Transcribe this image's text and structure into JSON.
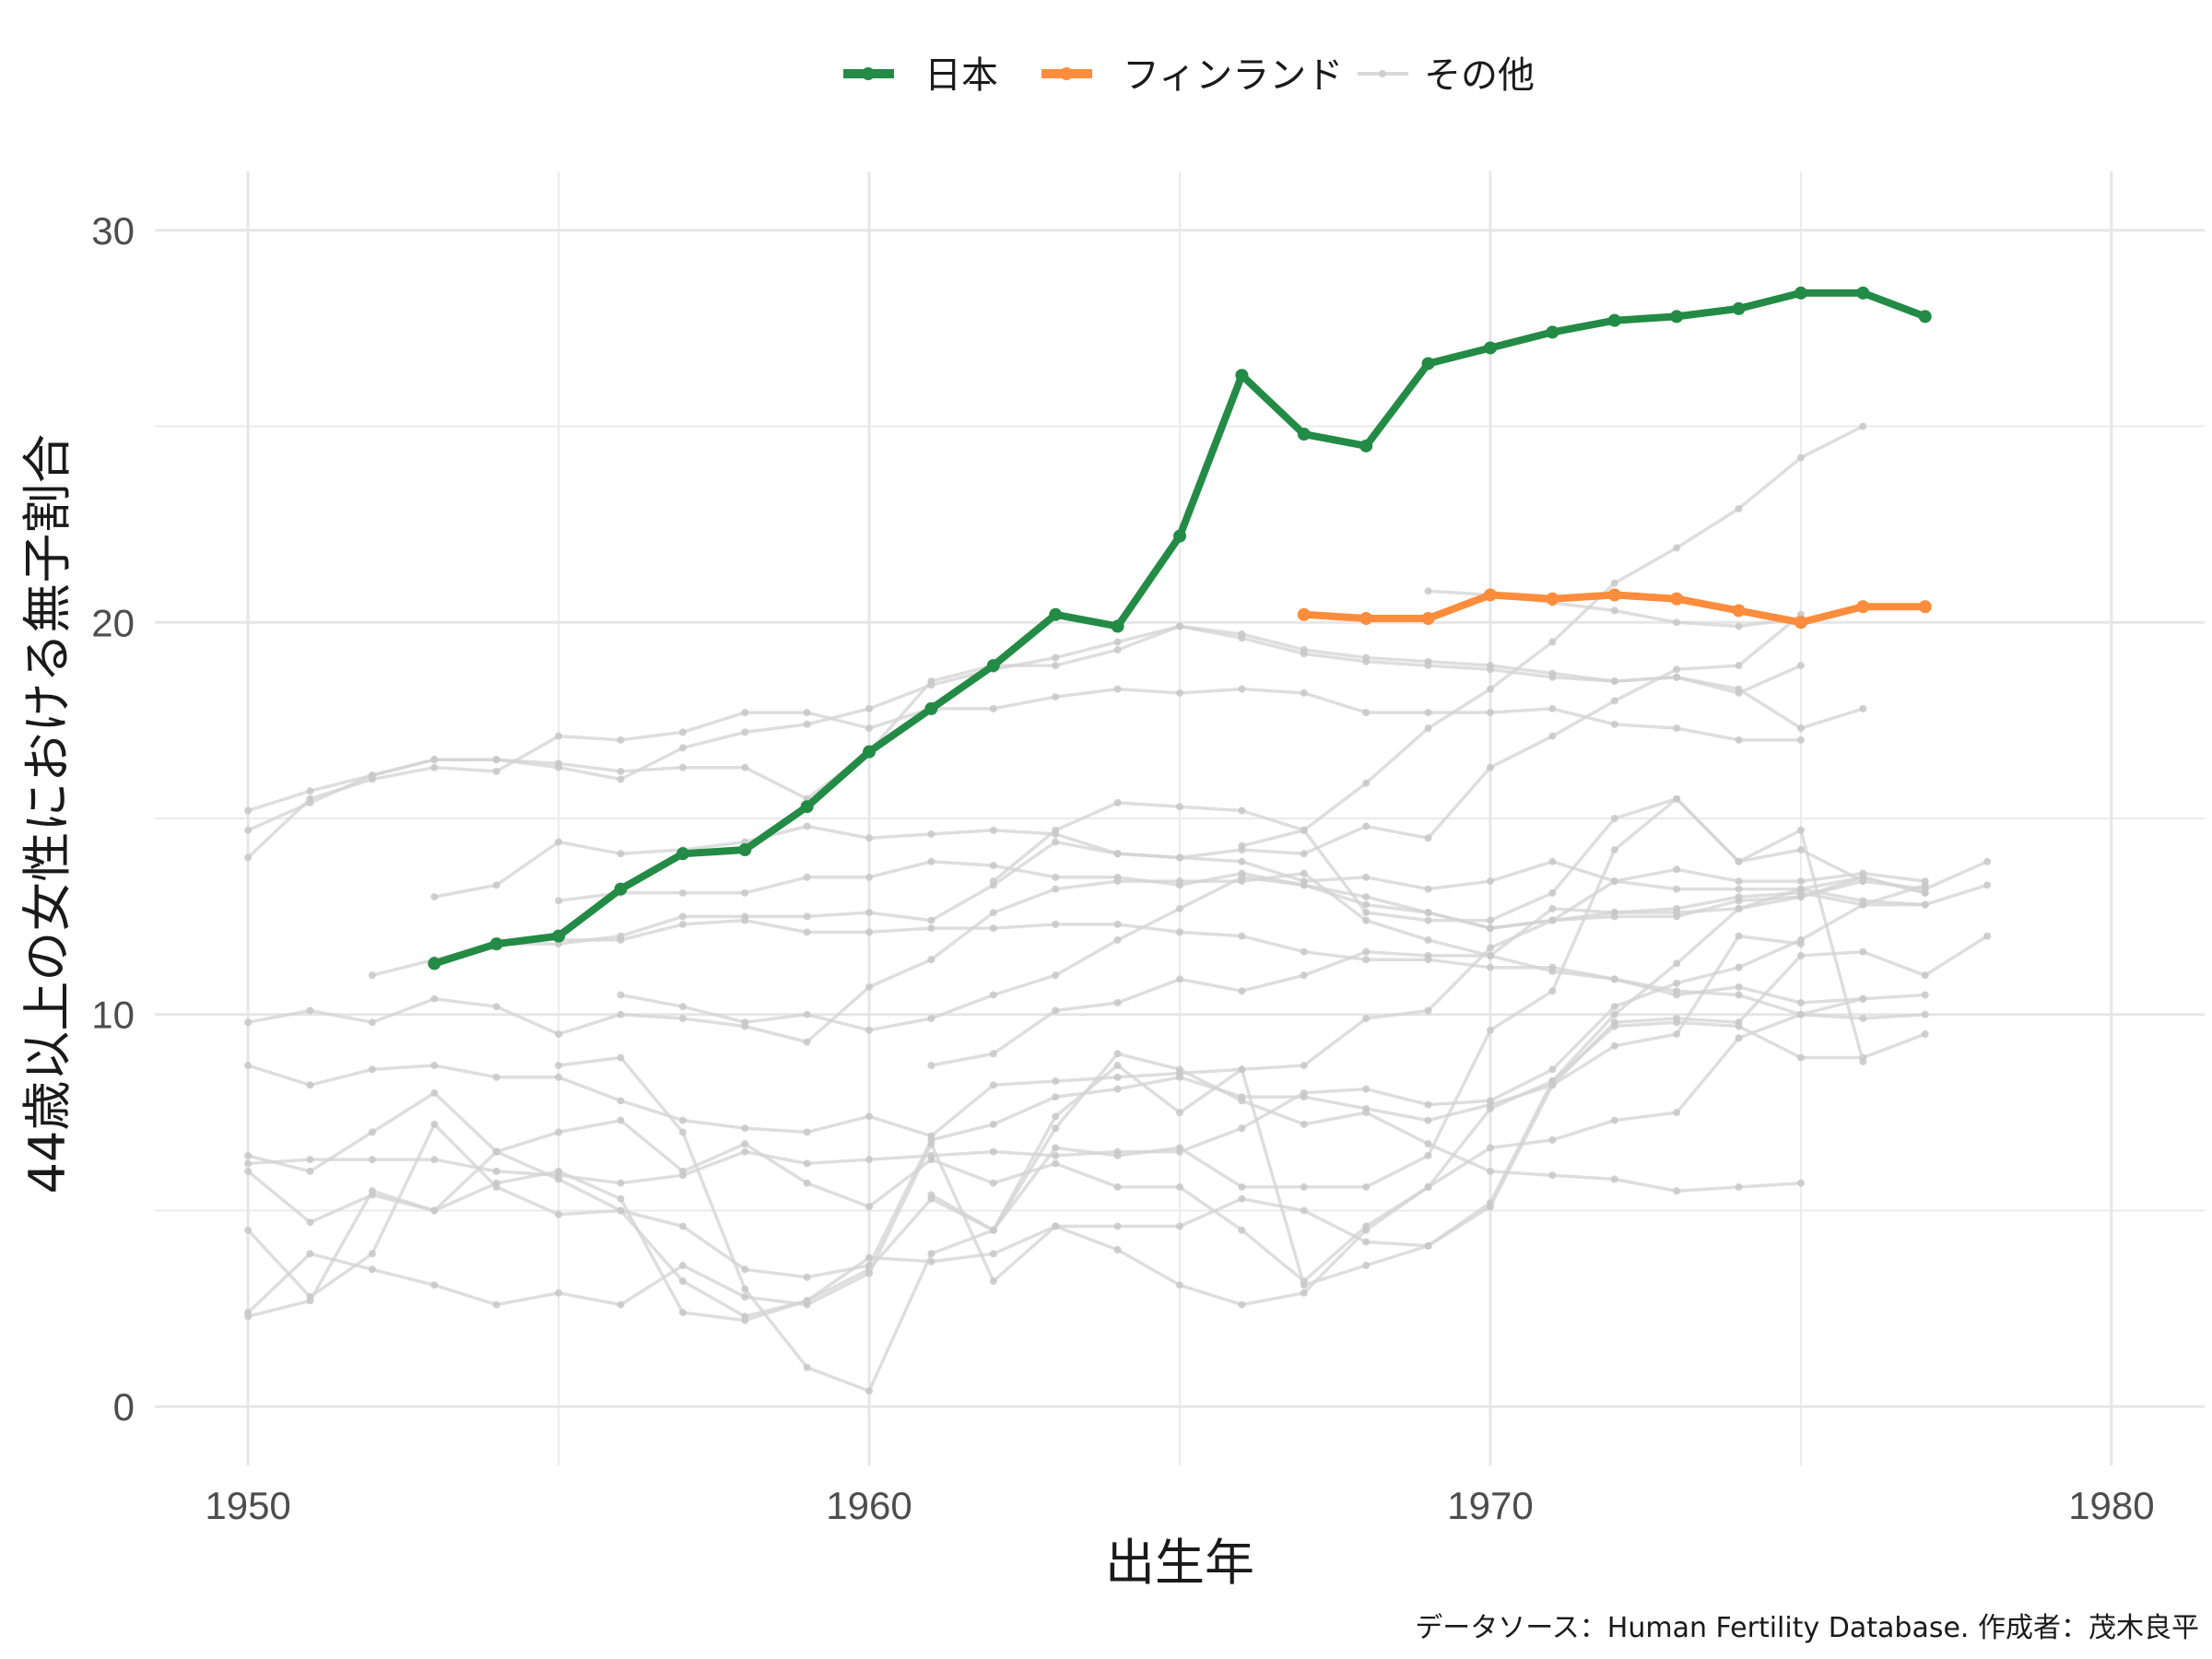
{
  "chart_data": {
    "type": "line",
    "xlabel": "出生年",
    "ylabel": "44歳以上の女性における無子割合",
    "caption": "データソース：Human Fertility Database. 作成者：茂木良平",
    "xlim": [
      1948.5,
      1981.5
    ],
    "ylim": [
      -1.5,
      31.5
    ],
    "x_ticks": [
      1950,
      1960,
      1970,
      1980
    ],
    "y_ticks": [
      0,
      10,
      20,
      30
    ],
    "grid": true,
    "legend_position": "top",
    "legend": [
      {
        "label": "日本",
        "color": "#238b45"
      },
      {
        "label": "フィンランド",
        "color": "#fd8d3c"
      },
      {
        "label": "その他",
        "color": "#d9d9d9"
      }
    ],
    "highlight_series": [
      {
        "name": "日本",
        "color": "#238b45",
        "x": [
          1953,
          1954,
          1955,
          1956,
          1957,
          1958,
          1959,
          1960,
          1961,
          1962,
          1963,
          1964,
          1965,
          1966,
          1967,
          1968,
          1969,
          1970,
          1971,
          1972,
          1973,
          1974,
          1975,
          1976,
          1977
        ],
        "y": [
          11.3,
          11.8,
          12.0,
          13.2,
          14.1,
          14.2,
          15.3,
          16.7,
          17.8,
          18.9,
          20.2,
          19.9,
          22.2,
          26.3,
          24.8,
          24.5,
          26.6,
          27.0,
          27.4,
          27.7,
          27.8,
          28.0,
          28.4,
          28.4,
          27.8
        ]
      },
      {
        "name": "フィンランド",
        "color": "#fd8d3c",
        "x": [
          1967,
          1968,
          1969,
          1970,
          1971,
          1972,
          1973,
          1974,
          1975,
          1976,
          1977
        ],
        "y": [
          20.2,
          20.1,
          20.1,
          20.7,
          20.6,
          20.7,
          20.6,
          20.3,
          20.0,
          20.4,
          20.4
        ]
      }
    ],
    "other_series": [
      {
        "x": [
          1950,
          1951,
          1952,
          1953,
          1954,
          1955,
          1956,
          1957,
          1958,
          1959,
          1960,
          1961,
          1962,
          1963,
          1964,
          1965,
          1966,
          1967,
          1968,
          1969,
          1970,
          1971,
          1972,
          1973,
          1974,
          1975
        ],
        "y": [
          15.2,
          15.7,
          16.1,
          16.5,
          16.5,
          16.4,
          16.2,
          16.3,
          16.3,
          15.5,
          16.7,
          18.5,
          18.9,
          18.9,
          19.3,
          19.9,
          19.7,
          19.3,
          19.1,
          19.0,
          18.9,
          18.7,
          18.5,
          18.6,
          18.2,
          18.9
        ]
      },
      {
        "x": [
          1950,
          1951,
          1952,
          1953,
          1954,
          1955,
          1956,
          1957,
          1958,
          1959,
          1960,
          1961,
          1962,
          1963,
          1964,
          1965,
          1966,
          1967,
          1968,
          1969,
          1970,
          1971,
          1972,
          1973,
          1974,
          1975
        ],
        "y": [
          14.0,
          15.5,
          16.0,
          16.3,
          16.2,
          17.1,
          17.0,
          17.2,
          17.7,
          17.7,
          17.3,
          17.8,
          17.8,
          18.1,
          18.3,
          18.2,
          18.3,
          18.2,
          17.7,
          17.7,
          17.7,
          17.8,
          17.4,
          17.3,
          17.0,
          17.0
        ]
      },
      {
        "x": [
          1969,
          1970,
          1971,
          1972,
          1973,
          1974,
          1975
        ],
        "y": [
          20.8,
          20.7,
          20.5,
          20.3,
          20.0,
          19.9,
          20.1
        ]
      },
      {
        "x": [
          1950,
          1951,
          1952,
          1953,
          1954,
          1955,
          1956,
          1957,
          1958,
          1959,
          1960,
          1961,
          1962,
          1963,
          1964,
          1965,
          1966,
          1967,
          1968,
          1969,
          1970,
          1971,
          1972,
          1973,
          1974,
          1975,
          1976
        ],
        "y": [
          14.7,
          15.4,
          16.1,
          16.5,
          16.5,
          16.3,
          16.0,
          16.8,
          17.2,
          17.4,
          17.8,
          18.4,
          18.8,
          19.1,
          19.5,
          19.9,
          19.6,
          19.2,
          19.0,
          18.9,
          18.8,
          18.6,
          18.5,
          18.6,
          18.3,
          17.3,
          17.8
        ]
      },
      {
        "x": [
          1966,
          1967,
          1968,
          1969,
          1970,
          1971,
          1972,
          1973,
          1974,
          1975,
          1976
        ],
        "y": [
          14.3,
          14.7,
          15.9,
          17.3,
          18.3,
          19.5,
          21.0,
          21.9,
          22.9,
          24.2,
          25.0
        ]
      },
      {
        "x": [
          1953,
          1954,
          1955,
          1956,
          1957,
          1958,
          1959,
          1960,
          1961,
          1962,
          1963,
          1964,
          1965,
          1966,
          1967,
          1968,
          1969,
          1970,
          1971,
          1972,
          1973,
          1974,
          1975
        ],
        "y": [
          13.0,
          13.3,
          14.4,
          14.1,
          14.2,
          14.4,
          14.8,
          14.5,
          14.6,
          14.7,
          14.6,
          14.1,
          14.0,
          14.2,
          14.1,
          14.8,
          14.5,
          16.3,
          17.1,
          18.0,
          18.8,
          18.9,
          20.2
        ]
      },
      {
        "x": [
          1955,
          1956,
          1957,
          1958,
          1959,
          1960,
          1961,
          1962,
          1963,
          1964,
          1965,
          1966,
          1967,
          1968,
          1969,
          1970,
          1971,
          1972,
          1973,
          1974,
          1975,
          1976,
          1977
        ],
        "y": [
          12.9,
          13.1,
          13.1,
          13.1,
          13.5,
          13.5,
          13.9,
          13.8,
          13.5,
          13.5,
          13.3,
          13.6,
          13.3,
          13.0,
          12.6,
          12.2,
          12.4,
          13.4,
          13.2,
          13.2,
          13.2,
          12.9,
          12.8
        ]
      },
      {
        "x": [
          1955,
          1956,
          1957,
          1958,
          1959,
          1960,
          1961,
          1962,
          1963,
          1964,
          1965,
          1966,
          1967,
          1968,
          1969,
          1970,
          1971,
          1972,
          1973,
          1974,
          1975,
          1976,
          1977
        ],
        "y": [
          11.9,
          11.9,
          12.3,
          12.4,
          12.1,
          12.1,
          12.2,
          12.2,
          12.3,
          12.3,
          12.1,
          12.0,
          11.6,
          11.4,
          11.4,
          11.2,
          11.2,
          10.9,
          10.6,
          10.5,
          10.0,
          9.9,
          10.0
        ]
      },
      {
        "x": [
          1952,
          1953,
          1954,
          1955,
          1956,
          1957,
          1958,
          1959,
          1960,
          1961,
          1962,
          1963,
          1964,
          1965,
          1966,
          1967,
          1968,
          1969,
          1970,
          1971,
          1972,
          1973,
          1974,
          1975,
          1976,
          1977
        ],
        "y": [
          11.0,
          11.4,
          11.8,
          11.8,
          12.0,
          12.5,
          12.5,
          12.5,
          12.6,
          12.4,
          13.3,
          14.4,
          14.1,
          14.0,
          13.9,
          13.4,
          13.5,
          13.2,
          13.4,
          13.9,
          13.4,
          13.7,
          13.4,
          13.4,
          13.6,
          13.4
        ]
      },
      {
        "x": [
          1950,
          1951,
          1952,
          1953,
          1954,
          1955,
          1956,
          1957,
          1958,
          1959,
          1960,
          1961,
          1962,
          1963,
          1964,
          1965,
          1966,
          1967,
          1968,
          1969,
          1970,
          1971,
          1972,
          1973,
          1974,
          1975,
          1976,
          1977,
          1978
        ],
        "y": [
          9.8,
          10.1,
          9.8,
          10.4,
          10.2,
          9.5,
          10.0,
          9.9,
          9.7,
          9.3,
          10.7,
          11.4,
          12.6,
          13.2,
          13.4,
          13.4,
          13.4,
          13.6,
          12.4,
          11.9,
          11.5,
          12.7,
          12.6,
          12.7,
          13.0,
          13.1,
          12.8,
          12.8,
          13.3
        ]
      },
      {
        "x": [
          1956,
          1957,
          1958,
          1959,
          1960,
          1961,
          1962,
          1963,
          1964,
          1965,
          1966,
          1967,
          1968,
          1969,
          1970,
          1971,
          1972,
          1973,
          1974,
          1975,
          1976,
          1977,
          1978
        ],
        "y": [
          10.5,
          10.2,
          9.8,
          10.0,
          9.6,
          9.9,
          10.5,
          11.0,
          11.9,
          12.7,
          13.5,
          13.3,
          12.8,
          12.6,
          12.2,
          12.4,
          12.6,
          12.6,
          12.7,
          13.0,
          13.4,
          13.2,
          13.9
        ]
      },
      {
        "x": [
          1950,
          1951,
          1952,
          1953,
          1954,
          1955,
          1956,
          1957,
          1958,
          1959,
          1960,
          1961,
          1962,
          1963,
          1964,
          1965,
          1966,
          1967,
          1968,
          1969,
          1970,
          1971,
          1972,
          1973,
          1974,
          1975,
          1976,
          1977
        ],
        "y": [
          8.7,
          8.2,
          8.6,
          8.7,
          8.4,
          8.4,
          7.8,
          7.3,
          7.1,
          7.0,
          7.4,
          6.9,
          8.2,
          8.3,
          8.4,
          8.5,
          8.6,
          8.7,
          9.9,
          10.1,
          11.7,
          12.4,
          12.5,
          12.5,
          12.9,
          13.0,
          13.5,
          13.1
        ]
      },
      {
        "x": [
          1961,
          1962,
          1963,
          1964,
          1965,
          1966,
          1967,
          1968,
          1969,
          1970,
          1971,
          1972,
          1973,
          1974,
          1975,
          1976,
          1977
        ],
        "y": [
          8.7,
          9.0,
          10.1,
          10.3,
          10.9,
          10.6,
          11.0,
          11.6,
          11.5,
          11.5,
          11.1,
          10.9,
          10.5,
          10.7,
          10.3,
          10.4,
          10.5
        ]
      },
      {
        "x": [
          1950,
          1951,
          1952,
          1953,
          1954,
          1955,
          1956,
          1957,
          1958,
          1959,
          1960,
          1961,
          1962,
          1963,
          1964,
          1965,
          1966,
          1967,
          1968,
          1969,
          1970,
          1971,
          1972,
          1973,
          1974,
          1975,
          1976,
          1977,
          1978
        ],
        "y": [
          6.4,
          6.0,
          7.0,
          8.0,
          6.5,
          5.8,
          5.0,
          4.6,
          3.5,
          3.3,
          3.6,
          6.8,
          7.2,
          7.9,
          8.1,
          8.4,
          7.9,
          7.9,
          7.6,
          7.3,
          7.7,
          8.2,
          9.8,
          9.9,
          9.8,
          11.5,
          11.6,
          11.0,
          12.0
        ]
      },
      {
        "x": [
          1950,
          1951,
          1952,
          1953,
          1954,
          1955,
          1956,
          1957,
          1958,
          1959,
          1960,
          1961,
          1962,
          1963,
          1964,
          1965,
          1966,
          1967,
          1968,
          1969,
          1970,
          1971,
          1972,
          1973,
          1974,
          1975,
          1976,
          1977
        ],
        "y": [
          6.2,
          6.3,
          6.3,
          6.3,
          6.0,
          5.9,
          5.7,
          5.9,
          6.5,
          6.2,
          6.3,
          6.4,
          6.5,
          6.4,
          6.5,
          6.5,
          7.1,
          8.0,
          8.1,
          7.7,
          7.8,
          8.6,
          10.2,
          10.8,
          11.2,
          11.9,
          12.8,
          13.3
        ]
      },
      {
        "x": [
          1950,
          1951,
          1952,
          1953,
          1954,
          1955,
          1956,
          1957,
          1958,
          1959,
          1960,
          1961,
          1962,
          1963,
          1964,
          1965,
          1966,
          1967,
          1968,
          1969,
          1970,
          1971,
          1972,
          1973,
          1974,
          1975,
          1976
        ],
        "y": [
          6.0,
          4.7,
          5.4,
          5.0,
          6.5,
          7.0,
          7.3,
          6.0,
          6.7,
          5.7,
          5.1,
          6.3,
          5.7,
          6.2,
          5.6,
          5.6,
          4.5,
          3.2,
          4.6,
          5.6,
          6.6,
          6.8,
          7.3,
          7.5,
          9.4,
          10.0,
          10.4
        ]
      },
      {
        "x": [
          1950,
          1951,
          1952,
          1953,
          1954,
          1955,
          1956,
          1957,
          1958,
          1959,
          1960,
          1961,
          1962,
          1963,
          1964,
          1965,
          1966,
          1967,
          1968,
          1969,
          1970,
          1971,
          1972,
          1973,
          1974,
          1975
        ],
        "y": [
          4.5,
          2.8,
          3.9,
          7.2,
          5.6,
          4.9,
          5.0,
          3.2,
          2.3,
          2.7,
          3.5,
          5.3,
          4.5,
          7.1,
          9.0,
          8.6,
          7.8,
          7.2,
          7.5,
          6.7,
          6.0,
          5.9,
          5.8,
          5.5,
          5.6,
          5.7
        ]
      },
      {
        "x": [
          1950,
          1951,
          1952,
          1953,
          1954,
          1955,
          1956,
          1957,
          1958,
          1959,
          1960,
          1961,
          1962,
          1963,
          1964,
          1965,
          1966,
          1967,
          1968,
          1969,
          1970,
          1971,
          1972,
          1973,
          1974,
          1975,
          1976,
          1977
        ],
        "y": [
          2.4,
          3.9,
          3.5,
          3.1,
          2.6,
          2.9,
          2.6,
          3.6,
          2.8,
          2.6,
          3.4,
          6.7,
          3.2,
          4.6,
          4.0,
          3.1,
          2.6,
          2.9,
          4.5,
          5.6,
          7.6,
          8.3,
          9.7,
          9.8,
          9.7,
          8.9,
          8.9,
          9.5
        ]
      },
      {
        "x": [
          1950,
          1951,
          1952,
          1953,
          1954,
          1955,
          1956,
          1957,
          1958,
          1959,
          1960,
          1961,
          1962,
          1963,
          1964,
          1965,
          1966,
          1967,
          1968,
          1969,
          1970,
          1971,
          1972,
          1973,
          1974,
          1975,
          1976,
          1977
        ],
        "y": [
          2.3,
          2.7,
          5.5,
          5.0,
          5.7,
          6.0,
          5.3,
          2.4,
          2.2,
          2.7,
          3.8,
          3.7,
          3.9,
          4.6,
          4.6,
          4.6,
          5.3,
          5.0,
          4.2,
          4.1,
          5.2,
          8.3,
          10.0,
          11.3,
          12.7,
          13.2,
          13.5,
          13.1
        ]
      },
      {
        "x": [
          1955,
          1956,
          1957,
          1958,
          1959,
          1960,
          1961,
          1962,
          1963,
          1964,
          1965,
          1966,
          1967,
          1968,
          1969,
          1970,
          1971,
          1972,
          1973,
          1974,
          1975
        ],
        "y": [
          8.7,
          8.9,
          7.0,
          3.0,
          1.0,
          0.4,
          3.9,
          4.5,
          7.4,
          8.7,
          7.5,
          8.6,
          3.1,
          3.6,
          4.1,
          5.1,
          8.2,
          9.2,
          9.5,
          12.0,
          11.8
        ]
      },
      {
        "x": [
          1961,
          1962,
          1963,
          1964,
          1965,
          1966,
          1967,
          1968,
          1969,
          1970,
          1971,
          1972,
          1973,
          1974,
          1975,
          1976
        ],
        "y": [
          5.4,
          4.5,
          6.6,
          6.4,
          6.6,
          5.6,
          5.6,
          5.6,
          6.4,
          9.6,
          10.6,
          14.2,
          15.5,
          13.9,
          14.2,
          13.4
        ]
      },
      {
        "x": [
          1962,
          1963,
          1964,
          1965,
          1966,
          1967,
          1968,
          1969,
          1970,
          1971,
          1972,
          1973,
          1974,
          1975,
          1976
        ],
        "y": [
          13.4,
          14.7,
          15.4,
          15.3,
          15.2,
          14.7,
          12.6,
          12.4,
          12.4,
          13.1,
          15.0,
          15.5,
          13.9,
          14.7,
          8.8
        ]
      }
    ]
  }
}
